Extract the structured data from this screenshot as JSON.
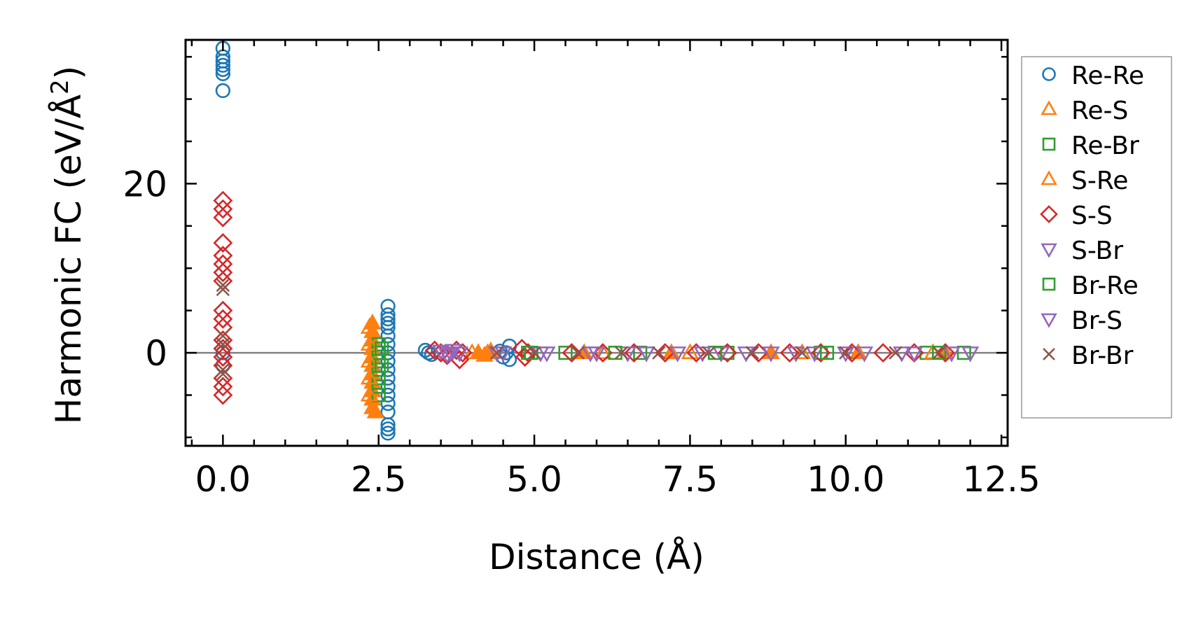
{
  "chart_data": {
    "type": "scatter",
    "title": "",
    "xlabel": "Distance (Å)",
    "ylabel_main": "Harmonic FC (eV/Å",
    "ylabel_sup": "2",
    "ylabel_close": ")",
    "xlim": [
      -0.6,
      12.6
    ],
    "ylim": [
      -11,
      37
    ],
    "xticks": [
      0.0,
      2.5,
      5.0,
      7.5,
      10.0,
      12.5
    ],
    "xtick_labels": [
      "0.0",
      "2.5",
      "5.0",
      "7.5",
      "10.0",
      "12.5"
    ],
    "yticks": [
      0,
      20
    ],
    "ytick_labels": [
      "0",
      "20"
    ],
    "x_minor_step": 0.5,
    "y_minor_step": 5,
    "zero_line": true,
    "legend_position": "outside-right",
    "series": [
      {
        "name": "Re-Re",
        "marker": "circle",
        "color": "#1f77b4",
        "points": [
          [
            0,
            36
          ],
          [
            0,
            35
          ],
          [
            0,
            34.5
          ],
          [
            0,
            34
          ],
          [
            0,
            33.5
          ],
          [
            0,
            33
          ],
          [
            0,
            31
          ],
          [
            0,
            -1.5
          ],
          [
            0,
            0
          ],
          [
            2.65,
            5.5
          ],
          [
            2.65,
            4.5
          ],
          [
            2.65,
            4
          ],
          [
            2.65,
            3.5
          ],
          [
            2.65,
            3
          ],
          [
            2.65,
            2
          ],
          [
            2.65,
            1
          ],
          [
            2.65,
            0
          ],
          [
            2.65,
            -1
          ],
          [
            2.65,
            -2
          ],
          [
            2.65,
            -3
          ],
          [
            2.65,
            -4
          ],
          [
            2.65,
            -5
          ],
          [
            2.65,
            -6
          ],
          [
            2.65,
            -7
          ],
          [
            2.65,
            -8.5
          ],
          [
            2.65,
            -9
          ],
          [
            2.65,
            -9.5
          ],
          [
            3.25,
            0.3
          ],
          [
            3.3,
            0
          ],
          [
            3.35,
            -0.2
          ],
          [
            4.45,
            0.2
          ],
          [
            4.5,
            -0.5
          ],
          [
            4.55,
            0
          ],
          [
            4.6,
            -0.8
          ],
          [
            4.6,
            0.8
          ]
        ]
      },
      {
        "name": "Re-S",
        "marker": "triangle-up",
        "color": "#ff7f0e",
        "points": [
          [
            2.4,
            3.5
          ],
          [
            2.4,
            2.5
          ],
          [
            2.4,
            1.5
          ],
          [
            2.4,
            0.5
          ],
          [
            2.4,
            -0.5
          ],
          [
            2.4,
            -1.5
          ],
          [
            2.4,
            -2.5
          ],
          [
            2.4,
            -3.5
          ],
          [
            2.4,
            -4.5
          ],
          [
            2.4,
            -5.5
          ],
          [
            2.4,
            -6.5
          ],
          [
            2.45,
            -7
          ],
          [
            4.1,
            0
          ],
          [
            4.2,
            -0.3
          ],
          [
            4.3,
            0.2
          ],
          [
            5.8,
            0
          ],
          [
            7.2,
            0
          ],
          [
            8.8,
            0
          ],
          [
            10.2,
            0
          ],
          [
            11.6,
            0
          ]
        ]
      },
      {
        "name": "Re-Br",
        "marker": "square",
        "color": "#2ca02c",
        "points": [
          [
            2.5,
            1
          ],
          [
            2.5,
            0
          ],
          [
            2.5,
            -1
          ],
          [
            2.5,
            -2
          ],
          [
            2.5,
            -3
          ],
          [
            2.5,
            -4
          ],
          [
            2.5,
            -5
          ],
          [
            4.9,
            0
          ],
          [
            5.5,
            0
          ],
          [
            6.7,
            0
          ],
          [
            8.1,
            0
          ],
          [
            9.6,
            0
          ],
          [
            11.3,
            0
          ],
          [
            11.9,
            0
          ]
        ]
      },
      {
        "name": "S-Re",
        "marker": "triangle-up-open",
        "color": "#ff7f0e",
        "points": [
          [
            2.35,
            3
          ],
          [
            2.35,
            1
          ],
          [
            2.35,
            -1
          ],
          [
            2.35,
            -3
          ],
          [
            2.35,
            -5
          ],
          [
            4.0,
            0
          ],
          [
            4.25,
            0
          ],
          [
            6.1,
            0
          ],
          [
            7.5,
            0
          ],
          [
            9.3,
            0
          ],
          [
            11.4,
            0
          ]
        ]
      },
      {
        "name": "S-S",
        "marker": "diamond",
        "color": "#d62728",
        "points": [
          [
            0,
            18
          ],
          [
            0,
            17
          ],
          [
            0,
            16
          ],
          [
            0,
            13
          ],
          [
            0,
            11.5
          ],
          [
            0,
            10.5
          ],
          [
            0,
            9.5
          ],
          [
            0,
            8.5
          ],
          [
            0,
            5
          ],
          [
            0,
            4
          ],
          [
            0,
            3
          ],
          [
            0,
            1.5
          ],
          [
            0,
            0.5
          ],
          [
            0,
            -0.5
          ],
          [
            0,
            -1.5
          ],
          [
            0,
            -3
          ],
          [
            0,
            -4
          ],
          [
            0,
            -5
          ],
          [
            3.4,
            0.3
          ],
          [
            3.5,
            0
          ],
          [
            3.6,
            -0.3
          ],
          [
            3.75,
            0.3
          ],
          [
            3.8,
            -0.8
          ],
          [
            3.85,
            0
          ],
          [
            4.8,
            0.5
          ],
          [
            4.85,
            -0.5
          ],
          [
            4.9,
            0
          ],
          [
            5.6,
            0
          ],
          [
            6.1,
            0
          ],
          [
            6.6,
            0
          ],
          [
            7.1,
            0
          ],
          [
            7.6,
            0
          ],
          [
            8.1,
            0
          ],
          [
            8.6,
            0
          ],
          [
            9.1,
            0
          ],
          [
            9.6,
            0
          ],
          [
            10.1,
            0
          ],
          [
            10.6,
            0
          ],
          [
            11.1,
            0
          ],
          [
            11.6,
            0
          ]
        ]
      },
      {
        "name": "S-Br",
        "marker": "triangle-down",
        "color": "#9467bd",
        "points": [
          [
            3.5,
            0.2
          ],
          [
            3.6,
            -0.2
          ],
          [
            3.7,
            0.3
          ],
          [
            3.8,
            0
          ],
          [
            4.4,
            0
          ],
          [
            5.1,
            0
          ],
          [
            5.9,
            0
          ],
          [
            6.5,
            0
          ],
          [
            7.3,
            0
          ],
          [
            8.0,
            0
          ],
          [
            8.8,
            0
          ],
          [
            9.5,
            0
          ],
          [
            10.3,
            0
          ],
          [
            11.1,
            0
          ]
        ]
      },
      {
        "name": "Br-Re",
        "marker": "square",
        "color": "#2ca02c",
        "points": [
          [
            2.55,
            0.5
          ],
          [
            2.55,
            -1.5
          ],
          [
            4.95,
            0
          ],
          [
            6.3,
            0
          ],
          [
            7.9,
            0
          ],
          [
            9.7,
            0
          ],
          [
            11.5,
            0
          ]
        ]
      },
      {
        "name": "Br-S",
        "marker": "triangle-down",
        "color": "#9467bd",
        "points": [
          [
            3.65,
            0
          ],
          [
            4.5,
            0
          ],
          [
            5.2,
            0
          ],
          [
            6.0,
            0
          ],
          [
            6.8,
            0
          ],
          [
            7.7,
            0
          ],
          [
            8.4,
            0
          ],
          [
            9.2,
            0
          ],
          [
            10.0,
            0
          ],
          [
            10.9,
            0
          ],
          [
            11.7,
            0
          ],
          [
            12.0,
            0
          ]
        ]
      },
      {
        "name": "Br-Br",
        "marker": "x",
        "color": "#8c564b",
        "points": [
          [
            0,
            8
          ],
          [
            0,
            7.5
          ],
          [
            0,
            2
          ],
          [
            0,
            1
          ],
          [
            0,
            -2
          ],
          [
            0,
            -2.5
          ],
          [
            4.4,
            0
          ],
          [
            5.0,
            0
          ],
          [
            5.7,
            0
          ],
          [
            6.4,
            0
          ],
          [
            7.0,
            0
          ],
          [
            7.8,
            0
          ],
          [
            8.5,
            0
          ],
          [
            9.3,
            0
          ],
          [
            10.0,
            0
          ],
          [
            10.8,
            0
          ],
          [
            11.5,
            0
          ]
        ]
      }
    ]
  }
}
